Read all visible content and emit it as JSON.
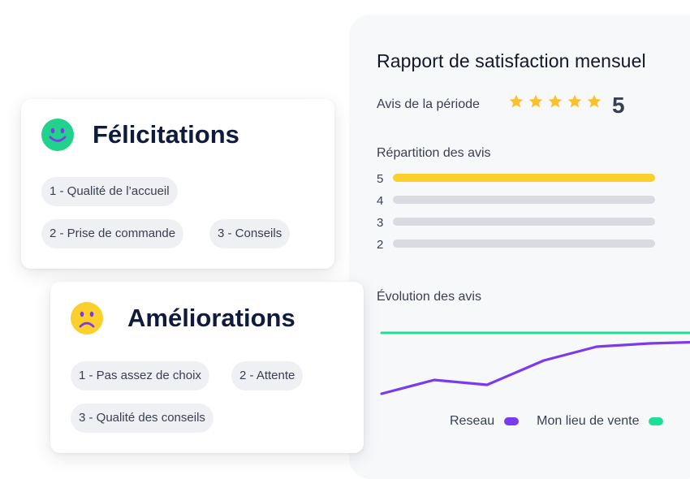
{
  "report": {
    "title": "Rapport de satisfaction mensuel",
    "period_label": "Avis de la période",
    "stars": 5,
    "rating": "5",
    "distribution_label": "Répartition des avis",
    "distribution": [
      {
        "label": "5",
        "fraction": 1.0,
        "color": "#fbcf2c"
      },
      {
        "label": "4",
        "fraction": 0,
        "color": "#d9dbe0"
      },
      {
        "label": "3",
        "fraction": 0,
        "color": "#d9dbe0"
      },
      {
        "label": "2",
        "fraction": 0,
        "color": "#d9dbe0"
      }
    ],
    "evolution_label": "Évolution des avis",
    "legend": {
      "network": "Reseau",
      "store": "Mon lieu de vente",
      "network_color": "#7c3aed",
      "store_color": "#1ddf96"
    }
  },
  "congrats": {
    "title": "Félicitations",
    "icon": "smile-icon",
    "icon_color": "#22d18b",
    "chips": [
      "1 - Qualité de l’accueil",
      "2 - Prise de commande",
      "3 - Conseils"
    ]
  },
  "improvements": {
    "title": "Améliorations",
    "icon": "frown-icon",
    "icon_color": "#fbcf2c",
    "chips": [
      "1 - Pas assez de choix",
      "2 - Attente",
      "3 - Qualité des conseils"
    ]
  },
  "colors": {
    "star": "#fbc02d",
    "title_dark": "#0f1b3d"
  }
}
